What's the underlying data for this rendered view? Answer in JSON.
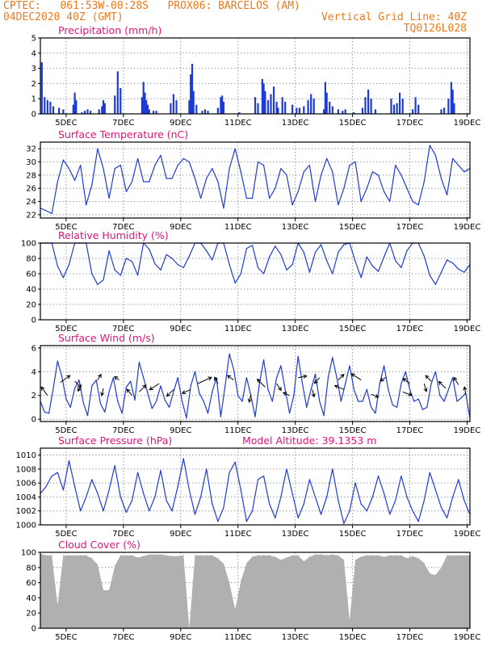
{
  "header": {
    "line1_left": "CPTEC:   061:53W-00:28S   PROX06: BARCELOS (AM)",
    "line2_left": "04DEC2020 40Z (GMT)",
    "line2_right": "Vertical Grid Line: 40Z",
    "line3_right": "TQ0126L028"
  },
  "colors": {
    "header": "#f07818",
    "title": "#e0147a",
    "series": "#1f3bd6",
    "bars": "#1f3bd6",
    "cloud": "#b0b0b0",
    "arrows": "#000000"
  },
  "x_axis": {
    "tick_labels": [
      "5DEC",
      "7DEC",
      "9DEC",
      "11DEC",
      "13DEC",
      "15DEC",
      "17DEC",
      "19DEC"
    ],
    "tick_days": [
      5,
      7,
      9,
      11,
      13,
      15,
      17,
      19
    ],
    "start_day": 4.1,
    "end_day": 19.1
  },
  "chart_data": [
    {
      "name": "precip",
      "type": "bar",
      "title": "Precipitation (mm/h)",
      "ylim": [
        0,
        5
      ],
      "yticks": [
        0,
        1,
        2,
        3,
        4,
        5
      ],
      "grid": true,
      "x_days": [
        4.15,
        4.25,
        4.35,
        4.45,
        4.55,
        4.75,
        4.9,
        5.25,
        5.3,
        5.35,
        5.55,
        5.65,
        5.75,
        5.85,
        6.15,
        6.25,
        6.3,
        6.35,
        6.7,
        6.8,
        6.9,
        7.65,
        7.7,
        7.75,
        7.8,
        7.85,
        7.9,
        8.05,
        8.15,
        8.65,
        8.75,
        8.85,
        9.3,
        9.35,
        9.4,
        9.45,
        9.55,
        9.75,
        9.85,
        9.95,
        10.3,
        10.4,
        10.45,
        10.5,
        11.05,
        11.6,
        11.7,
        11.85,
        11.9,
        11.95,
        12.05,
        12.15,
        12.25,
        12.35,
        12.4,
        12.55,
        12.65,
        12.9,
        13.05,
        13.15,
        13.3,
        13.45,
        13.55,
        13.65,
        14.0,
        14.05,
        14.1,
        14.2,
        14.3,
        14.5,
        14.65,
        14.75,
        15.05,
        15.35,
        15.45,
        15.55,
        15.65,
        15.8,
        16.35,
        16.45,
        16.55,
        16.65,
        16.75,
        17.1,
        17.2,
        17.3,
        18.1,
        18.2,
        18.35,
        18.45,
        18.5,
        18.55
      ],
      "values": [
        3.4,
        1.1,
        0.9,
        0.8,
        0.5,
        0.4,
        0.3,
        0.6,
        1.4,
        0.9,
        0.1,
        0.2,
        0.3,
        0.2,
        0.3,
        0.5,
        0.9,
        0.7,
        1.2,
        2.8,
        1.7,
        1.1,
        2.1,
        1.4,
        0.9,
        0.6,
        0.3,
        0.2,
        0.2,
        0.7,
        1.3,
        0.9,
        0.9,
        2.6,
        3.3,
        1.5,
        0.6,
        0.2,
        0.3,
        0.2,
        0.4,
        1.1,
        1.2,
        0.8,
        0.1,
        1.1,
        0.7,
        2.3,
        2.0,
        1.5,
        0.9,
        1.3,
        1.8,
        0.8,
        0.4,
        1.1,
        0.8,
        0.6,
        0.4,
        0.4,
        0.5,
        0.9,
        1.3,
        1.0,
        0.3,
        2.1,
        1.4,
        0.8,
        0.5,
        0.3,
        0.2,
        0.3,
        0.1,
        0.4,
        1.1,
        1.6,
        1.0,
        0.3,
        1.0,
        0.6,
        0.7,
        1.4,
        1.0,
        0.3,
        1.1,
        0.6,
        0.3,
        0.4,
        1.0,
        2.1,
        1.6,
        0.7
      ]
    },
    {
      "name": "temp",
      "type": "line",
      "title": "Surface Temperature (nC)",
      "ylim": [
        21.5,
        33
      ],
      "yticks": [
        22,
        24,
        26,
        28,
        30,
        32
      ],
      "grid": true,
      "x_days": [
        4.1,
        4.3,
        4.5,
        4.7,
        4.9,
        5.1,
        5.3,
        5.5,
        5.7,
        5.9,
        6.1,
        6.3,
        6.5,
        6.7,
        6.9,
        7.1,
        7.3,
        7.5,
        7.7,
        7.9,
        8.1,
        8.3,
        8.5,
        8.7,
        8.9,
        9.1,
        9.3,
        9.5,
        9.7,
        9.9,
        10.1,
        10.3,
        10.5,
        10.7,
        10.9,
        11.1,
        11.3,
        11.5,
        11.7,
        11.9,
        12.1,
        12.3,
        12.5,
        12.7,
        12.9,
        13.1,
        13.3,
        13.5,
        13.7,
        13.9,
        14.1,
        14.3,
        14.5,
        14.7,
        14.9,
        15.1,
        15.3,
        15.5,
        15.7,
        15.9,
        16.1,
        16.3,
        16.5,
        16.7,
        16.9,
        17.1,
        17.3,
        17.5,
        17.7,
        17.9,
        18.1,
        18.3,
        18.5,
        18.7,
        18.9,
        19.1
      ],
      "values": [
        23.0,
        22.6,
        22.2,
        27.0,
        30.3,
        29.0,
        27.2,
        29.5,
        23.5,
        26.5,
        32.0,
        29.0,
        24.5,
        29.0,
        29.5,
        25.5,
        27.0,
        30.5,
        27.0,
        27.0,
        29.5,
        31.0,
        27.5,
        27.5,
        29.5,
        30.5,
        30.0,
        27.5,
        24.5,
        27.5,
        29.0,
        27.0,
        23.0,
        29.0,
        32.0,
        28.5,
        24.5,
        24.5,
        30.0,
        29.5,
        24.5,
        26.0,
        29.0,
        28.0,
        23.5,
        25.5,
        28.5,
        29.5,
        24.0,
        28.0,
        30.5,
        28.5,
        23.5,
        26.0,
        29.5,
        30.0,
        24.0,
        26.0,
        28.5,
        28.0,
        25.5,
        24.0,
        29.5,
        28.0,
        26.0,
        24.0,
        23.5,
        27.0,
        32.5,
        31.0,
        27.5,
        25.0,
        30.5,
        29.5,
        28.5,
        29.0
      ]
    },
    {
      "name": "rh",
      "type": "line",
      "title": "Relative Humidity (%)",
      "ylim": [
        0,
        100
      ],
      "yticks": [
        0,
        20,
        40,
        60,
        80,
        100
      ],
      "grid": true,
      "x_days": [
        4.1,
        4.3,
        4.5,
        4.7,
        4.9,
        5.1,
        5.3,
        5.5,
        5.7,
        5.9,
        6.1,
        6.3,
        6.5,
        6.7,
        6.9,
        7.1,
        7.3,
        7.5,
        7.7,
        7.9,
        8.1,
        8.3,
        8.5,
        8.7,
        8.9,
        9.1,
        9.3,
        9.5,
        9.7,
        9.9,
        10.1,
        10.3,
        10.5,
        10.7,
        10.9,
        11.1,
        11.3,
        11.5,
        11.7,
        11.9,
        12.1,
        12.3,
        12.5,
        12.7,
        12.9,
        13.1,
        13.3,
        13.5,
        13.7,
        13.9,
        14.1,
        14.3,
        14.5,
        14.7,
        14.9,
        15.1,
        15.3,
        15.5,
        15.7,
        15.9,
        16.1,
        16.3,
        16.5,
        16.7,
        16.9,
        17.1,
        17.3,
        17.5,
        17.7,
        17.9,
        18.1,
        18.3,
        18.5,
        18.7,
        18.9,
        19.1
      ],
      "values": [
        100,
        100,
        100,
        70,
        55,
        72,
        100,
        100,
        100,
        60,
        46,
        52,
        90,
        65,
        58,
        80,
        76,
        58,
        100,
        92,
        73,
        65,
        85,
        80,
        72,
        68,
        83,
        100,
        100,
        90,
        78,
        100,
        100,
        72,
        48,
        60,
        93,
        97,
        68,
        60,
        82,
        96,
        85,
        65,
        72,
        100,
        88,
        62,
        88,
        98,
        77,
        60,
        88,
        98,
        100,
        76,
        55,
        82,
        70,
        63,
        82,
        100,
        77,
        68,
        90,
        100,
        100,
        83,
        58,
        46,
        62,
        78,
        74,
        66,
        62,
        72
      ]
    },
    {
      "name": "wind",
      "type": "line",
      "title": "Surface Wind (m/s)",
      "ylim": [
        -0.2,
        6.2
      ],
      "yticks": [
        0,
        2,
        4,
        6
      ],
      "grid": true,
      "x_days": [
        4.1,
        4.25,
        4.4,
        4.55,
        4.7,
        4.85,
        5.0,
        5.15,
        5.3,
        5.45,
        5.6,
        5.75,
        5.9,
        6.05,
        6.2,
        6.35,
        6.5,
        6.65,
        6.8,
        6.95,
        7.1,
        7.25,
        7.4,
        7.55,
        7.7,
        7.85,
        8.0,
        8.15,
        8.3,
        8.45,
        8.6,
        8.75,
        8.9,
        9.05,
        9.2,
        9.35,
        9.5,
        9.65,
        9.8,
        9.95,
        10.1,
        10.25,
        10.4,
        10.55,
        10.7,
        10.85,
        11.0,
        11.15,
        11.3,
        11.45,
        11.6,
        11.75,
        11.9,
        12.05,
        12.2,
        12.35,
        12.5,
        12.65,
        12.8,
        12.95,
        13.1,
        13.25,
        13.4,
        13.55,
        13.7,
        13.85,
        14.0,
        14.15,
        14.3,
        14.45,
        14.6,
        14.75,
        14.9,
        15.05,
        15.2,
        15.35,
        15.5,
        15.65,
        15.8,
        15.95,
        16.1,
        16.25,
        16.4,
        16.55,
        16.7,
        16.85,
        17.0,
        17.15,
        17.3,
        17.45,
        17.6,
        17.75,
        17.9,
        18.05,
        18.2,
        18.35,
        18.5,
        18.65,
        18.8,
        18.95,
        19.1
      ],
      "values": [
        1.5,
        0.6,
        0.5,
        2.6,
        4.9,
        3.6,
        1.7,
        1.0,
        2.6,
        3.3,
        1.4,
        0.3,
        2.8,
        3.3,
        1.3,
        0.6,
        2.3,
        3.5,
        1.5,
        0.5,
        2.7,
        3.2,
        1.6,
        4.8,
        3.5,
        2.2,
        0.9,
        1.5,
        2.8,
        1.6,
        1.0,
        2.3,
        3.5,
        1.5,
        0.1,
        2.8,
        4.0,
        2.2,
        1.5,
        0.5,
        2.3,
        3.5,
        0.2,
        2.8,
        5.5,
        4.2,
        2.0,
        1.5,
        3.5,
        2.0,
        0.2,
        3.0,
        5.0,
        2.5,
        1.5,
        3.5,
        4.5,
        2.5,
        0.5,
        2.0,
        5.3,
        3.0,
        1.0,
        2.5,
        3.8,
        1.5,
        0.3,
        3.5,
        5.2,
        3.5,
        1.5,
        3.0,
        4.5,
        2.5,
        1.5,
        1.5,
        2.5,
        1.0,
        0.5,
        3.0,
        4.5,
        2.5,
        1.2,
        1.0,
        3.0,
        4.0,
        2.5,
        1.5,
        1.7,
        0.8,
        1.0,
        3.0,
        4.0,
        2.0,
        1.5,
        2.5,
        3.5,
        1.5,
        1.8,
        2.2,
        0.1
      ]
    },
    {
      "name": "wind_arrows",
      "type": "vector",
      "x_days": [
        4.35,
        4.8,
        5.3,
        5.55,
        6.1,
        6.3,
        6.85,
        7.3,
        7.55,
        8.25,
        8.75,
        9.35,
        9.6,
        10.3,
        10.85,
        11.45,
        11.95,
        12.35,
        12.8,
        13.1,
        13.6,
        13.85,
        14.5,
        14.7,
        15.3,
        15.65,
        16.15,
        16.75,
        17.0,
        17.5,
        17.75,
        18.25,
        18.7,
        18.95
      ],
      "y_vals": [
        2.0,
        3.1,
        3.2,
        2.9,
        3.3,
        2.6,
        3.3,
        2.0,
        2.3,
        3.0,
        2.5,
        2.5,
        3.0,
        3.0,
        3.3,
        2.1,
        2.7,
        3.0,
        2.0,
        3.5,
        2.5,
        3.5,
        3.3,
        2.5,
        3.3,
        2.1,
        3.5,
        2.3,
        3.0,
        3.0,
        3.2,
        2.6,
        2.9,
        2.1
      ],
      "dx": [
        -0.55,
        0.85,
        0.55,
        -0.35,
        0.3,
        -0.15,
        -0.4,
        -0.45,
        0.6,
        -0.85,
        -0.6,
        -0.75,
        1.2,
        -0.3,
        -0.55,
        -0.15,
        -0.7,
        0.4,
        -0.55,
        0.75,
        0.15,
        -0.45,
        0.5,
        -0.8,
        -0.85,
        0.65,
        -0.45,
        0.8,
        -0.6,
        0.2,
        -0.5,
        -0.6,
        -0.4,
        -0.1
      ],
      "dy": [
        0.75,
        0.6,
        -0.55,
        -0.55,
        0.5,
        -0.65,
        0.3,
        0.55,
        0.6,
        -0.55,
        -0.6,
        -0.35,
        0.55,
        0.55,
        0.4,
        -0.7,
        0.7,
        -0.6,
        0.25,
        0.15,
        -0.65,
        -0.5,
        0.5,
        0.35,
        0.55,
        -0.25,
        -0.3,
        -0.3,
        0.45,
        -0.7,
        0.5,
        0.6,
        0.65,
        0.65
      ]
    },
    {
      "name": "pressure",
      "type": "line",
      "title": "Surface Pressure (hPa)",
      "annotation": "Model Altitude: 39.1353 m",
      "ylim": [
        1000,
        1011
      ],
      "yticks": [
        1000,
        1002,
        1004,
        1006,
        1008,
        1010
      ],
      "grid": true,
      "x_days": [
        4.1,
        4.3,
        4.5,
        4.7,
        4.9,
        5.1,
        5.3,
        5.5,
        5.7,
        5.9,
        6.1,
        6.3,
        6.5,
        6.7,
        6.9,
        7.1,
        7.3,
        7.5,
        7.7,
        7.9,
        8.1,
        8.3,
        8.5,
        8.7,
        8.9,
        9.1,
        9.3,
        9.5,
        9.7,
        9.9,
        10.1,
        10.3,
        10.5,
        10.7,
        10.9,
        11.1,
        11.3,
        11.5,
        11.7,
        11.9,
        12.1,
        12.3,
        12.5,
        12.7,
        12.9,
        13.1,
        13.3,
        13.5,
        13.7,
        13.9,
        14.1,
        14.3,
        14.5,
        14.7,
        14.9,
        15.1,
        15.3,
        15.5,
        15.7,
        15.9,
        16.1,
        16.3,
        16.5,
        16.7,
        16.9,
        17.1,
        17.3,
        17.5,
        17.7,
        17.9,
        18.1,
        18.3,
        18.5,
        18.7,
        18.9,
        19.1
      ],
      "values": [
        1004.5,
        1005.5,
        1007.0,
        1007.5,
        1005.0,
        1009.2,
        1005.5,
        1002.0,
        1004.0,
        1006.5,
        1004.5,
        1002.0,
        1005.0,
        1008.5,
        1004.0,
        1001.8,
        1003.5,
        1007.5,
        1004.5,
        1002.0,
        1004.0,
        1007.8,
        1003.5,
        1002.0,
        1005.5,
        1009.5,
        1005.0,
        1001.5,
        1004.0,
        1008.0,
        1003.0,
        1000.5,
        1002.5,
        1007.5,
        1009.0,
        1005.0,
        1000.5,
        1002.0,
        1006.5,
        1007.0,
        1003.0,
        1001.0,
        1004.0,
        1008.0,
        1004.5,
        1001.0,
        1003.0,
        1006.5,
        1004.0,
        1001.5,
        1004.0,
        1008.0,
        1003.5,
        1000.2,
        1002.0,
        1006.0,
        1003.0,
        1002.0,
        1004.0,
        1007.0,
        1004.5,
        1001.5,
        1003.5,
        1007.0,
        1004.0,
        1002.0,
        1000.5,
        1003.5,
        1007.5,
        1005.0,
        1002.5,
        1001.0,
        1004.0,
        1006.5,
        1003.5,
        1001.5
      ]
    },
    {
      "name": "cloud",
      "type": "bar",
      "title": "Cloud Cover (%)",
      "ylim": [
        0,
        100
      ],
      "yticks": [
        0,
        20,
        40,
        60,
        80,
        100
      ],
      "grid": true,
      "x_days": [
        4.1,
        4.3,
        4.5,
        4.7,
        4.9,
        5.1,
        5.3,
        5.5,
        5.7,
        5.9,
        6.1,
        6.3,
        6.5,
        6.7,
        6.9,
        7.1,
        7.3,
        7.5,
        7.7,
        7.9,
        8.1,
        8.3,
        8.5,
        8.7,
        8.9,
        9.1,
        9.3,
        9.5,
        9.7,
        9.9,
        10.1,
        10.3,
        10.5,
        10.7,
        10.9,
        11.1,
        11.3,
        11.5,
        11.7,
        11.9,
        12.1,
        12.3,
        12.5,
        12.7,
        12.9,
        13.1,
        13.3,
        13.5,
        13.7,
        13.9,
        14.1,
        14.3,
        14.5,
        14.7,
        14.9,
        15.1,
        15.3,
        15.5,
        15.7,
        15.9,
        16.1,
        16.3,
        16.5,
        16.7,
        16.9,
        17.1,
        17.3,
        17.5,
        17.7,
        17.9,
        18.1,
        18.3,
        18.5,
        18.7,
        18.9,
        19.1
      ],
      "values": [
        98,
        96,
        96,
        30,
        96,
        96,
        96,
        96,
        96,
        92,
        84,
        50,
        50,
        82,
        96,
        96,
        96,
        93,
        95,
        97,
        97,
        97,
        96,
        95,
        95,
        96,
        0,
        96,
        96,
        96,
        96,
        92,
        85,
        60,
        25,
        62,
        86,
        94,
        96,
        96,
        96,
        94,
        90,
        93,
        96,
        96,
        88,
        94,
        97,
        97,
        96,
        97,
        96,
        90,
        10,
        90,
        94,
        96,
        96,
        96,
        94,
        96,
        96,
        96,
        92,
        95,
        92,
        86,
        72,
        70,
        80,
        96,
        96,
        96,
        96,
        96
      ]
    }
  ]
}
